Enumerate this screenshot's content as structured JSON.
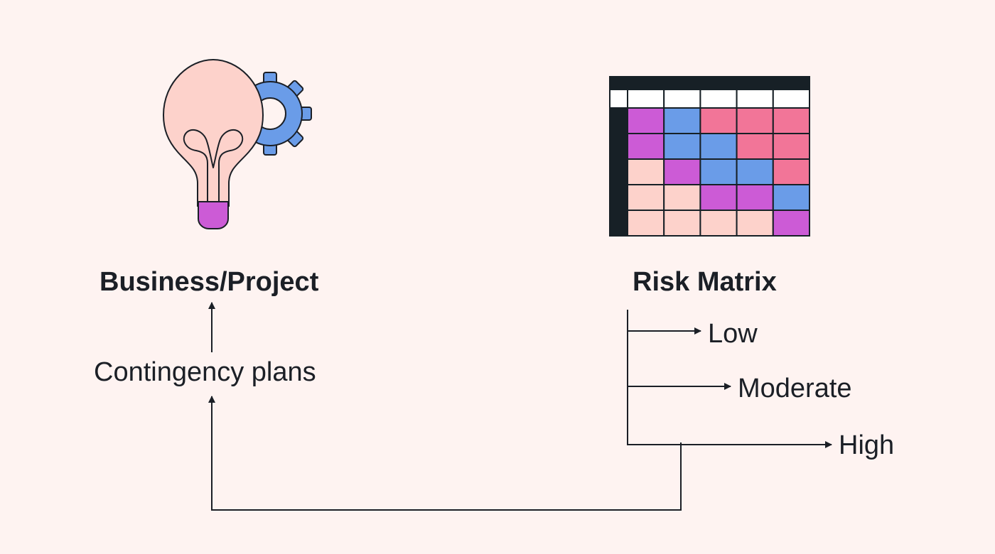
{
  "nodes": {
    "business_project": "Business/Project",
    "risk_matrix": "Risk Matrix",
    "contingency_plans": "Contingency plans",
    "levels": [
      "Low",
      "Moderate",
      "High"
    ]
  },
  "icons": {
    "left": "lightbulb-with-gear-icon",
    "right": "risk-matrix-grid-icon"
  },
  "risk_grid": {
    "rows": [
      [
        "purple",
        "blue",
        "pink",
        "pink",
        "pink"
      ],
      [
        "purple",
        "blue",
        "blue",
        "pink",
        "pink"
      ],
      [
        "peach",
        "purple",
        "blue",
        "blue",
        "pink"
      ],
      [
        "peach",
        "peach",
        "purple",
        "purple",
        "blue"
      ],
      [
        "peach",
        "peach",
        "peach",
        "peach",
        "purple"
      ]
    ],
    "palette": {
      "purple": "#cc5bd6",
      "blue": "#6a9ce8",
      "pink": "#f27598",
      "peach": "#fdd2cb",
      "dark": "#172026",
      "white": "#ffffff"
    }
  },
  "colors": {
    "background": "#fef3f1",
    "text": "#1b1f26",
    "bulb": "#fdd2cb",
    "bulb_base": "#cc5bd6",
    "gear": "#6a9ce8"
  },
  "edges": [
    {
      "from": "contingency_plans",
      "to": "business_project"
    },
    {
      "from": "risk_matrix",
      "to": "levels"
    },
    {
      "from": "High",
      "to": "contingency_plans"
    }
  ]
}
